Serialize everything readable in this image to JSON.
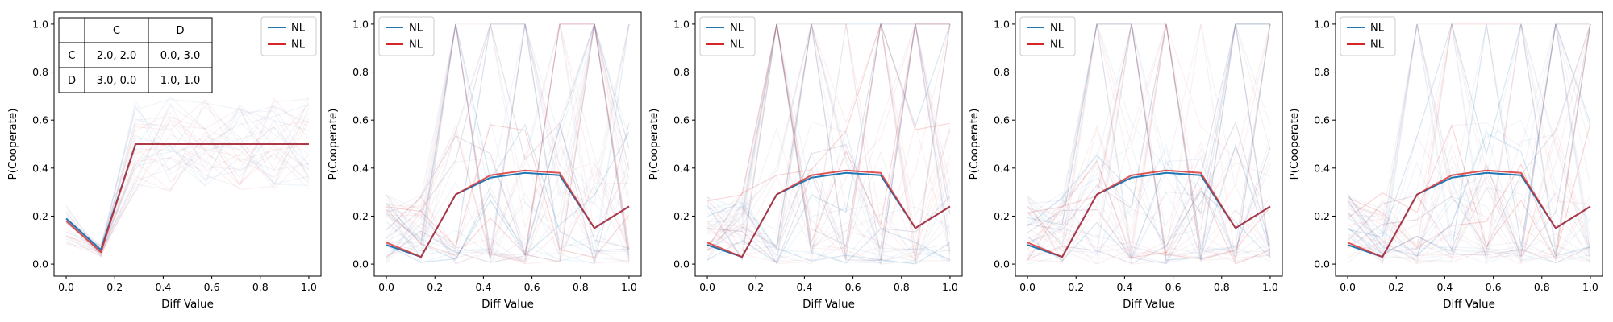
{
  "chart_data": [
    {
      "type": "line",
      "xlabel": "Diff Value",
      "ylabel": "P(Cooperate)",
      "xlim": [
        -0.05,
        1.05
      ],
      "ylim": [
        -0.05,
        1.05
      ],
      "xticks": [
        "0.0",
        "0.2",
        "0.4",
        "0.6",
        "0.8",
        "1.0"
      ],
      "yticks": [
        "0.0",
        "0.2",
        "0.4",
        "0.6",
        "0.8",
        "1.0"
      ],
      "legend_position": "top-right",
      "grid": false,
      "x": [
        0.0,
        0.1429,
        0.2857,
        0.4286,
        0.5714,
        0.7143,
        0.8571,
        1.0
      ],
      "series": [
        {
          "name": "NL",
          "color": "#1f77b4",
          "values": [
            0.19,
            0.06,
            0.5,
            0.5,
            0.5,
            0.5,
            0.5,
            0.5
          ]
        },
        {
          "name": "NL",
          "color": "#d62728",
          "values": [
            0.18,
            0.05,
            0.5,
            0.5,
            0.5,
            0.5,
            0.5,
            0.5
          ]
        }
      ],
      "payoff_table": {
        "col_headers": [
          "",
          "C",
          "D"
        ],
        "rows": [
          {
            "label": "C",
            "cells": [
              "2.0, 2.0",
              "0.0, 3.0"
            ]
          },
          {
            "label": "D",
            "cells": [
              "3.0, 0.0",
              "1.0, 1.0"
            ]
          }
        ]
      }
    },
    {
      "type": "line",
      "xlabel": "Diff Value",
      "ylabel": "P(Cooperate)",
      "xlim": [
        -0.05,
        1.05
      ],
      "ylim": [
        -0.05,
        1.05
      ],
      "xticks": [
        "0.0",
        "0.2",
        "0.4",
        "0.6",
        "0.8",
        "1.0"
      ],
      "yticks": [
        "0.0",
        "0.2",
        "0.4",
        "0.6",
        "0.8",
        "1.0"
      ],
      "legend_position": "top-left",
      "grid": false,
      "x": [
        0.0,
        0.1429,
        0.2857,
        0.4286,
        0.5714,
        0.7143,
        0.8571,
        1.0
      ],
      "series": [
        {
          "name": "NL",
          "color": "#1f77b4",
          "values": [
            0.08,
            0.03,
            0.29,
            0.36,
            0.38,
            0.37,
            0.15,
            0.24
          ]
        },
        {
          "name": "NL",
          "color": "#d62728",
          "values": [
            0.09,
            0.03,
            0.29,
            0.37,
            0.39,
            0.38,
            0.15,
            0.24
          ]
        }
      ]
    },
    {
      "type": "line",
      "xlabel": "Diff Value",
      "ylabel": "P(Cooperate)",
      "xlim": [
        -0.05,
        1.05
      ],
      "ylim": [
        -0.05,
        1.05
      ],
      "xticks": [
        "0.0",
        "0.2",
        "0.4",
        "0.6",
        "0.8",
        "1.0"
      ],
      "yticks": [
        "0.0",
        "0.2",
        "0.4",
        "0.6",
        "0.8",
        "1.0"
      ],
      "legend_position": "top-left",
      "grid": false,
      "x": [
        0.0,
        0.1429,
        0.2857,
        0.4286,
        0.5714,
        0.7143,
        0.8571,
        1.0
      ],
      "series": [
        {
          "name": "NL",
          "color": "#1f77b4",
          "values": [
            0.08,
            0.03,
            0.29,
            0.36,
            0.38,
            0.37,
            0.15,
            0.24
          ]
        },
        {
          "name": "NL",
          "color": "#d62728",
          "values": [
            0.09,
            0.03,
            0.29,
            0.37,
            0.39,
            0.38,
            0.15,
            0.24
          ]
        }
      ]
    },
    {
      "type": "line",
      "xlabel": "Diff Value",
      "ylabel": "P(Cooperate)",
      "xlim": [
        -0.05,
        1.05
      ],
      "ylim": [
        -0.05,
        1.05
      ],
      "xticks": [
        "0.0",
        "0.2",
        "0.4",
        "0.6",
        "0.8",
        "1.0"
      ],
      "yticks": [
        "0.0",
        "0.2",
        "0.4",
        "0.6",
        "0.8",
        "1.0"
      ],
      "legend_position": "top-left",
      "grid": false,
      "x": [
        0.0,
        0.1429,
        0.2857,
        0.4286,
        0.5714,
        0.7143,
        0.8571,
        1.0
      ],
      "series": [
        {
          "name": "NL",
          "color": "#1f77b4",
          "values": [
            0.08,
            0.03,
            0.29,
            0.36,
            0.38,
            0.37,
            0.15,
            0.24
          ]
        },
        {
          "name": "NL",
          "color": "#d62728",
          "values": [
            0.09,
            0.03,
            0.29,
            0.37,
            0.39,
            0.38,
            0.15,
            0.24
          ]
        }
      ]
    },
    {
      "type": "line",
      "xlabel": "Diff Value",
      "ylabel": "P(Cooperate)",
      "xlim": [
        -0.05,
        1.05
      ],
      "ylim": [
        -0.05,
        1.05
      ],
      "xticks": [
        "0.0",
        "0.2",
        "0.4",
        "0.6",
        "0.8",
        "1.0"
      ],
      "yticks": [
        "0.0",
        "0.2",
        "0.4",
        "0.6",
        "0.8",
        "1.0"
      ],
      "legend_position": "top-left",
      "grid": false,
      "x": [
        0.0,
        0.1429,
        0.2857,
        0.4286,
        0.5714,
        0.7143,
        0.8571,
        1.0
      ],
      "series": [
        {
          "name": "NL",
          "color": "#1f77b4",
          "values": [
            0.08,
            0.03,
            0.29,
            0.36,
            0.38,
            0.37,
            0.15,
            0.24
          ]
        },
        {
          "name": "NL",
          "color": "#d62728",
          "values": [
            0.09,
            0.03,
            0.29,
            0.37,
            0.39,
            0.38,
            0.15,
            0.24
          ]
        }
      ]
    }
  ]
}
